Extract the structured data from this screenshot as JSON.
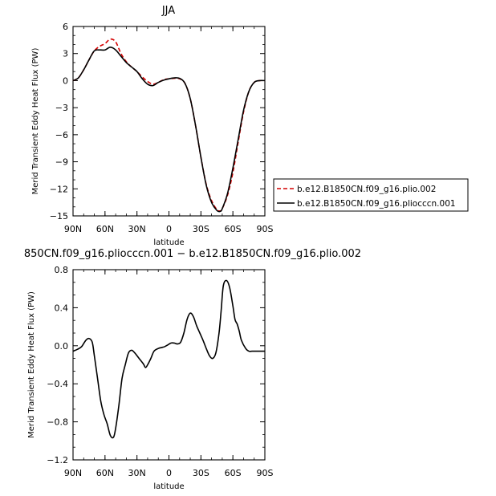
{
  "chart_data": [
    {
      "type": "line",
      "title": "JJA",
      "xlabel": "latitude",
      "ylabel": "Merid Transient Eddy Heat Flux (PW)",
      "xticks": [
        "90N",
        "60N",
        "30N",
        "0",
        "30S",
        "60S",
        "90S"
      ],
      "xlim": [
        90,
        -90
      ],
      "ylim": [
        -15,
        6
      ],
      "yticks": [
        "6",
        "3",
        "0",
        "−3",
        "−6",
        "−9",
        "−12",
        "−15"
      ],
      "grid": false,
      "legend": "right",
      "series": [
        {
          "name": "b.e12.B1850CN.f09_g16.plio.002",
          "color": "#d40000",
          "dash": true,
          "x": [
            90,
            85,
            80,
            75,
            70,
            65,
            60,
            55,
            50,
            45,
            40,
            35,
            30,
            25,
            20,
            15,
            10,
            5,
            0,
            -5,
            -10,
            -15,
            -20,
            -25,
            -30,
            -35,
            -40,
            -45,
            -48,
            -50,
            -55,
            -60,
            -65,
            -70,
            -75,
            -80,
            -85,
            -90
          ],
          "y": [
            0,
            0.3,
            1.2,
            2.3,
            3.3,
            3.8,
            4.1,
            4.6,
            4.3,
            3.0,
            2.1,
            1.5,
            1.0,
            0.4,
            -0.1,
            -0.4,
            -0.2,
            0.1,
            0.2,
            0.25,
            0.2,
            -0.3,
            -2.0,
            -5.0,
            -8.5,
            -11.5,
            -13.3,
            -14.3,
            -14.45,
            -14.2,
            -12.7,
            -10.2,
            -6.8,
            -3.5,
            -1.2,
            -0.2,
            0,
            0
          ]
        },
        {
          "name": "b.e12.B1850CN.f09_g16.pliocccn.001",
          "color": "#000000",
          "dash": false,
          "x": [
            90,
            85,
            80,
            75,
            70,
            65,
            60,
            55,
            50,
            45,
            40,
            35,
            30,
            25,
            20,
            15,
            10,
            5,
            0,
            -5,
            -10,
            -15,
            -20,
            -25,
            -30,
            -35,
            -40,
            -45,
            -48,
            -50,
            -55,
            -60,
            -65,
            -70,
            -75,
            -80,
            -85,
            -90
          ],
          "y": [
            0,
            0.3,
            1.2,
            2.3,
            3.3,
            3.4,
            3.4,
            3.7,
            3.4,
            2.7,
            2.0,
            1.5,
            1.0,
            0.2,
            -0.4,
            -0.55,
            -0.2,
            0.05,
            0.2,
            0.3,
            0.25,
            -0.3,
            -2.0,
            -5.0,
            -8.5,
            -11.6,
            -13.5,
            -14.4,
            -14.5,
            -14.2,
            -12.5,
            -9.7,
            -6.5,
            -3.3,
            -1.2,
            -0.2,
            0,
            0
          ]
        }
      ]
    },
    {
      "type": "line",
      "title": "850CN.f09_g16.pliocccn.001 − b.e12.B1850CN.f09_g16.plio.002",
      "xlabel": "latitude",
      "ylabel": "Merid Transient Eddy Heat Flux (PW)",
      "xticks": [
        "90N",
        "60N",
        "30N",
        "0",
        "30S",
        "60S",
        "90S"
      ],
      "xlim": [
        90,
        -90
      ],
      "ylim": [
        -1.2,
        0.9
      ],
      "yticks": [
        "0.8",
        "0.4",
        "0.0",
        "−0.4",
        "−0.8",
        "−1.2"
      ],
      "grid": false,
      "series": [
        {
          "color": "#000000",
          "x": [
            90,
            86,
            82,
            78,
            75,
            72,
            70,
            67,
            64,
            61,
            58,
            55,
            52,
            50,
            47,
            44,
            41,
            38,
            35,
            32,
            28,
            24,
            22,
            20,
            17,
            14,
            10,
            7,
            4,
            1,
            -2,
            -5,
            -8,
            -11,
            -14,
            -17,
            -20,
            -23,
            -26,
            -29,
            -32,
            -35,
            -38,
            -41,
            -44,
            -47,
            -49,
            -51,
            -54,
            -57,
            -60,
            -62,
            -64,
            -66,
            -68,
            -72,
            -75,
            -78,
            -81,
            -84,
            -87,
            -90
          ],
          "y": [
            0,
            0.02,
            0.05,
            0.12,
            0.14,
            0.1,
            -0.05,
            -0.3,
            -0.55,
            -0.7,
            -0.8,
            -0.93,
            -0.95,
            -0.85,
            -0.6,
            -0.3,
            -0.15,
            -0.02,
            0.01,
            -0.02,
            -0.08,
            -0.14,
            -0.18,
            -0.15,
            -0.08,
            0,
            0.03,
            0.04,
            0.05,
            0.07,
            0.09,
            0.09,
            0.08,
            0.1,
            0.2,
            0.35,
            0.42,
            0.38,
            0.28,
            0.2,
            0.12,
            0.03,
            -0.05,
            -0.08,
            -0.02,
            0.2,
            0.45,
            0.72,
            0.78,
            0.7,
            0.5,
            0.35,
            0.3,
            0.22,
            0.12,
            0.03,
            0,
            0,
            0,
            0,
            0,
            0
          ]
        }
      ]
    }
  ]
}
